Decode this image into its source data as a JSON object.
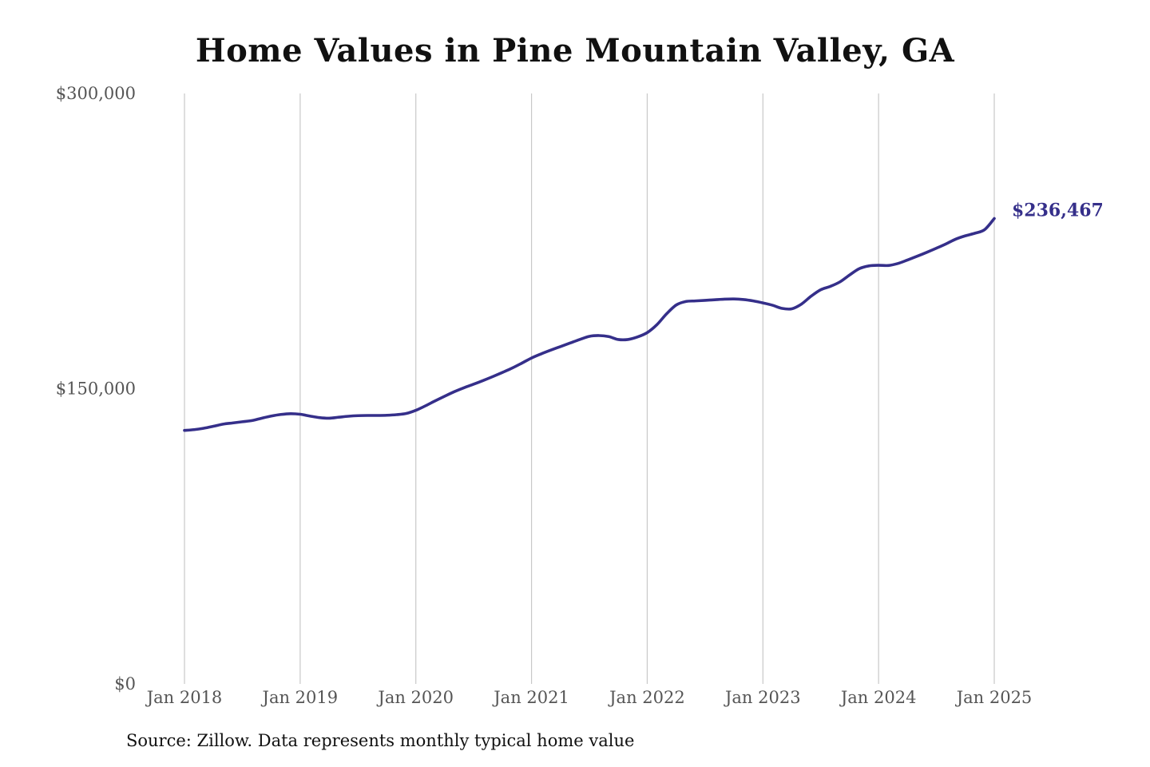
{
  "chart_data": {
    "type": "line",
    "title": "Home Values in Pine Mountain Valley, GA",
    "xlabel": "",
    "ylabel": "",
    "ylim": [
      0,
      300000
    ],
    "y_ticks": [
      {
        "value": 0,
        "label": "$0"
      },
      {
        "value": 150000,
        "label": "$150,000"
      },
      {
        "value": 300000,
        "label": "$300,000"
      }
    ],
    "x_range": [
      "2018-01",
      "2025-01"
    ],
    "x_ticks": [
      {
        "value": "2018-01",
        "label": "Jan 2018"
      },
      {
        "value": "2019-01",
        "label": "Jan 2019"
      },
      {
        "value": "2020-01",
        "label": "Jan 2020"
      },
      {
        "value": "2021-01",
        "label": "Jan 2021"
      },
      {
        "value": "2022-01",
        "label": "Jan 2022"
      },
      {
        "value": "2023-01",
        "label": "Jan 2023"
      },
      {
        "value": "2024-01",
        "label": "Jan 2024"
      },
      {
        "value": "2025-01",
        "label": "Jan 2025"
      }
    ],
    "grid": {
      "vertical": true,
      "horizontal": false
    },
    "line_color": "#352f8a",
    "end_label": "$236,467",
    "series": [
      {
        "x": [
          "2018-01",
          "2018-02",
          "2018-03",
          "2018-04",
          "2018-05",
          "2018-06",
          "2018-07",
          "2018-08",
          "2018-09",
          "2018-10",
          "2018-11",
          "2018-12",
          "2019-01",
          "2019-02",
          "2019-03",
          "2019-04",
          "2019-05",
          "2019-06",
          "2019-07",
          "2019-08",
          "2019-09",
          "2019-10",
          "2019-11",
          "2019-12",
          "2020-01",
          "2020-02",
          "2020-03",
          "2020-04",
          "2020-05",
          "2020-06",
          "2020-07",
          "2020-08",
          "2020-09",
          "2020-10",
          "2020-11",
          "2020-12",
          "2021-01",
          "2021-02",
          "2021-03",
          "2021-04",
          "2021-05",
          "2021-06",
          "2021-07",
          "2021-08",
          "2021-09",
          "2021-10",
          "2021-11",
          "2021-12",
          "2022-01",
          "2022-02",
          "2022-03",
          "2022-04",
          "2022-05",
          "2022-06",
          "2022-07",
          "2022-08",
          "2022-09",
          "2022-10",
          "2022-11",
          "2022-12",
          "2023-01",
          "2023-02",
          "2023-03",
          "2023-04",
          "2023-05",
          "2023-06",
          "2023-07",
          "2023-08",
          "2023-09",
          "2023-10",
          "2023-11",
          "2023-12",
          "2024-01",
          "2024-02",
          "2024-03",
          "2024-04",
          "2024-05",
          "2024-06",
          "2024-07",
          "2024-08",
          "2024-09",
          "2024-10",
          "2024-11",
          "2024-12",
          "2025-01"
        ],
        "values": [
          128800,
          129200,
          129900,
          130900,
          132000,
          132600,
          133200,
          133800,
          135000,
          136100,
          136900,
          137300,
          137000,
          136100,
          135300,
          135000,
          135500,
          136000,
          136300,
          136400,
          136400,
          136500,
          136800,
          137400,
          139000,
          141300,
          143800,
          146200,
          148500,
          150500,
          152300,
          154200,
          156200,
          158300,
          160500,
          163000,
          165600,
          167700,
          169600,
          171400,
          173200,
          175000,
          176600,
          177000,
          176500,
          175000,
          175000,
          176300,
          178500,
          182500,
          188000,
          192500,
          194300,
          194600,
          194900,
          195200,
          195500,
          195600,
          195300,
          194600,
          193600,
          192400,
          190800,
          190600,
          193000,
          197000,
          200300,
          202000,
          204300,
          207800,
          211000,
          212400,
          212700,
          212600,
          213600,
          215400,
          217300,
          219300,
          221400,
          223600,
          226000,
          227700,
          229000,
          230800,
          236467
        ]
      }
    ]
  },
  "source_note": "Source: Zillow. Data represents monthly typical home value"
}
